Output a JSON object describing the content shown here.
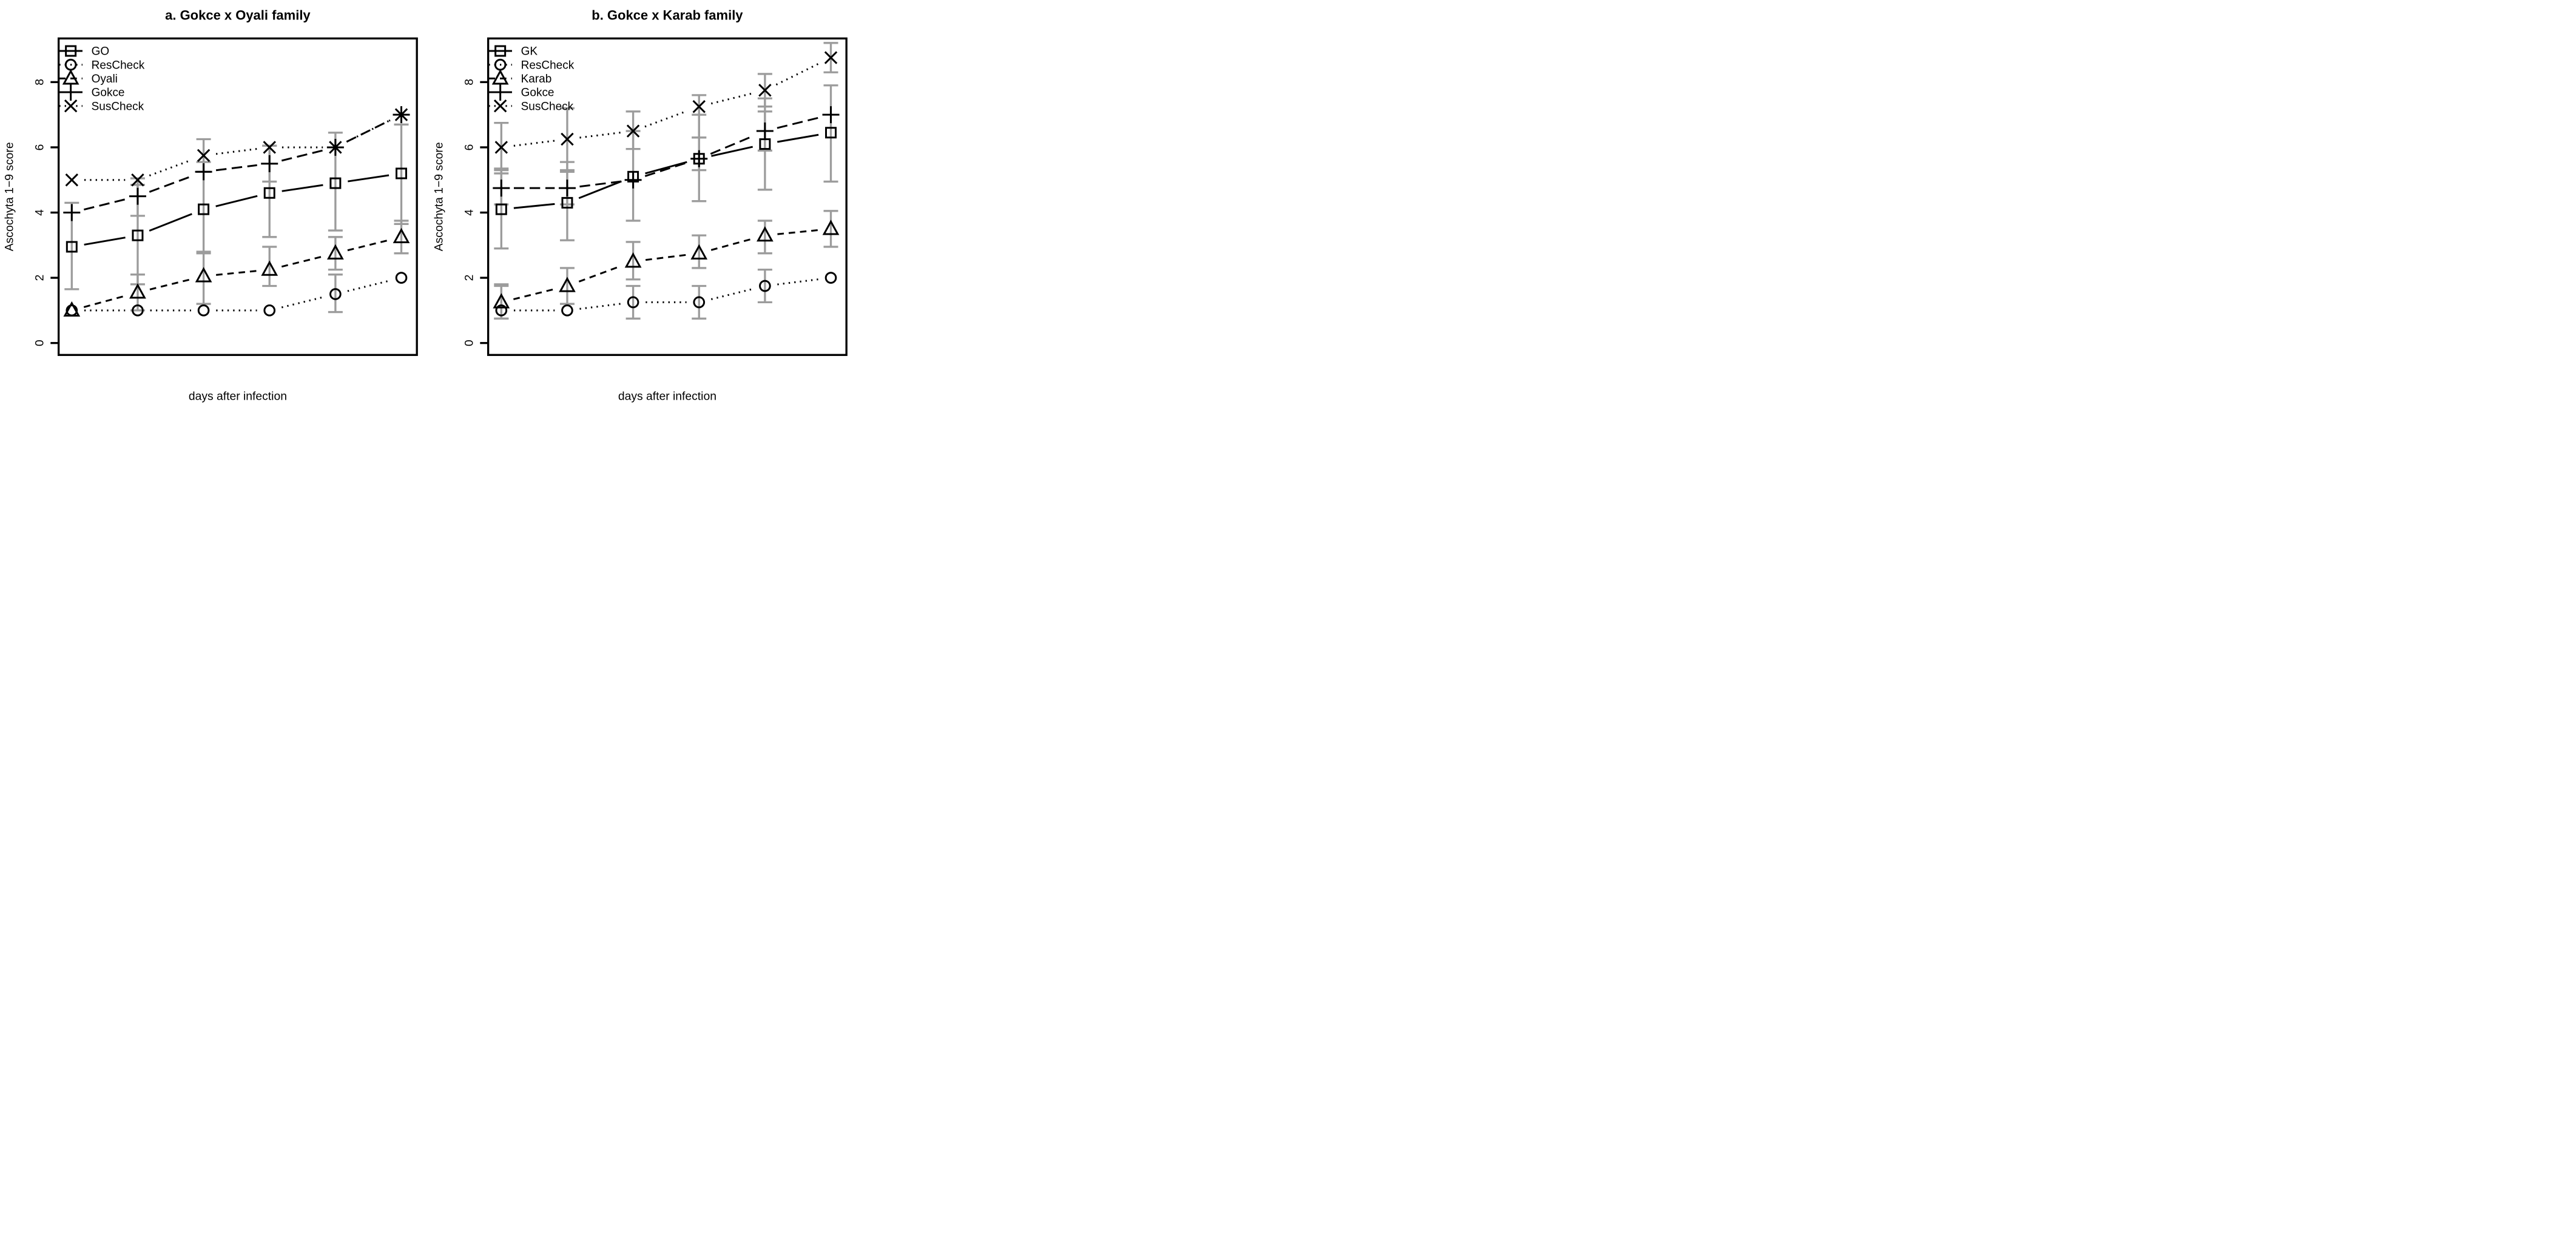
{
  "figure": {
    "background": "#ffffff",
    "line_color": "#000000",
    "error_bar_color": "#9c9c9c",
    "x_axis_ticks_shown": false
  },
  "chart_data": [
    {
      "type": "line",
      "panel": "a",
      "title": "a. Gokce x Oyali family",
      "xlabel": "days after infection",
      "ylabel": "Ascochyta 1−9 score",
      "x": [
        1,
        2,
        3,
        4,
        5,
        6
      ],
      "x_tick_labels": [],
      "ylim": [
        0,
        9.3
      ],
      "yticks": [
        0,
        2,
        4,
        6,
        8
      ],
      "grid": false,
      "legend_position": "top-left",
      "series": [
        {
          "name": "GO",
          "marker": "square",
          "line": "solid",
          "values": [
            2.95,
            3.3,
            4.1,
            4.6,
            4.9,
            5.2
          ],
          "error_bars": [
            [
              1.65,
              4.3
            ],
            [
              1.8,
              4.85
            ],
            [
              2.75,
              5.55
            ],
            [
              3.25,
              6.05
            ],
            [
              3.45,
              6.45
            ],
            [
              3.65,
              6.7
            ]
          ]
        },
        {
          "name": "ResCheck",
          "marker": "circle",
          "line": "dotted",
          "values": [
            1.0,
            1.0,
            1.0,
            1.0,
            1.5,
            2.0
          ],
          "error_bars": [
            null,
            null,
            null,
            null,
            [
              0.95,
              2.1
            ],
            null
          ]
        },
        {
          "name": "Oyali",
          "marker": "triangle",
          "line": "dashed",
          "values": [
            1.0,
            1.55,
            2.05,
            2.25,
            2.75,
            3.25
          ],
          "error_bars": [
            null,
            [
              1.0,
              2.1
            ],
            [
              1.2,
              2.8
            ],
            [
              1.75,
              2.95
            ],
            [
              2.25,
              3.25
            ],
            [
              2.75,
              3.75
            ]
          ]
        },
        {
          "name": "Gokce",
          "marker": "plus",
          "line": "longdash",
          "values": [
            4.0,
            4.5,
            5.25,
            5.5,
            6.0,
            7.0
          ],
          "error_bars": [
            null,
            [
              3.9,
              5.05
            ],
            null,
            [
              4.95,
              6.05
            ],
            null,
            null
          ]
        },
        {
          "name": "SusCheck",
          "marker": "cross",
          "line": "dotted",
          "values": [
            5.0,
            5.0,
            5.75,
            6.0,
            6.0,
            7.0
          ],
          "error_bars": [
            null,
            null,
            [
              5.25,
              6.25
            ],
            null,
            null,
            null
          ]
        }
      ]
    },
    {
      "type": "line",
      "panel": "b",
      "title": "b. Gokce x Karab family",
      "xlabel": "days after infection",
      "ylabel": "Ascochyta 1−9 score",
      "x": [
        1,
        2,
        3,
        4,
        5,
        6
      ],
      "x_tick_labels": [],
      "ylim": [
        0,
        9.3
      ],
      "yticks": [
        0,
        2,
        4,
        6,
        8
      ],
      "grid": false,
      "legend_position": "top-left",
      "series": [
        {
          "name": "GK",
          "marker": "square",
          "line": "solid",
          "values": [
            4.1,
            4.3,
            5.1,
            5.65,
            6.1,
            6.45
          ],
          "error_bars": [
            [
              2.9,
              5.35
            ],
            [
              3.15,
              5.55
            ],
            [
              3.75,
              6.5
            ],
            [
              4.35,
              7.0
            ],
            [
              4.7,
              7.5
            ],
            [
              4.95,
              7.9
            ]
          ]
        },
        {
          "name": "ResCheck",
          "marker": "circle",
          "line": "dotted",
          "values": [
            1.0,
            1.0,
            1.25,
            1.25,
            1.75,
            2.0
          ],
          "error_bars": [
            [
              0.75,
              1.75
            ],
            null,
            [
              0.75,
              1.75
            ],
            [
              0.75,
              1.75
            ],
            [
              1.25,
              2.25
            ],
            null
          ]
        },
        {
          "name": "Karab",
          "marker": "triangle",
          "line": "dashed",
          "values": [
            1.25,
            1.75,
            2.5,
            2.75,
            3.3,
            3.5
          ],
          "error_bars": [
            [
              0.75,
              1.8
            ],
            [
              1.2,
              2.3
            ],
            [
              1.95,
              3.1
            ],
            [
              2.3,
              3.3
            ],
            [
              2.75,
              3.75
            ],
            [
              2.95,
              4.05
            ]
          ]
        },
        {
          "name": "Gokce",
          "marker": "plus",
          "line": "longdash",
          "values": [
            4.75,
            4.75,
            5.0,
            5.65,
            6.5,
            7.0
          ],
          "error_bars": [
            [
              4.25,
              5.3
            ],
            [
              4.25,
              5.25
            ],
            null,
            [
              5.3,
              6.3
            ],
            [
              5.9,
              7.1
            ],
            null
          ]
        },
        {
          "name": "SusCheck",
          "marker": "cross",
          "line": "dotted",
          "values": [
            6.0,
            6.25,
            6.5,
            7.25,
            7.75,
            8.75
          ],
          "error_bars": [
            [
              5.2,
              6.75
            ],
            [
              5.3,
              7.2
            ],
            [
              5.95,
              7.1
            ],
            [
              6.3,
              7.6
            ],
            [
              7.25,
              8.25
            ],
            [
              8.3,
              9.2
            ]
          ]
        }
      ]
    }
  ]
}
